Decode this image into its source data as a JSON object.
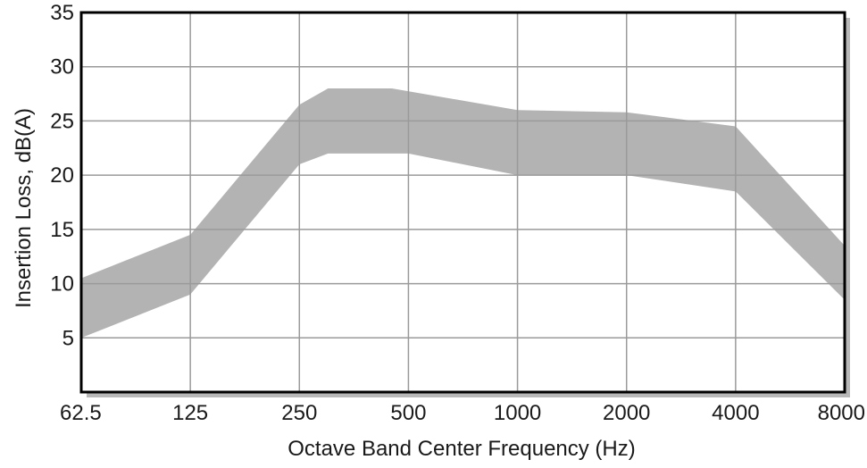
{
  "chart_data": {
    "type": "area",
    "title": "",
    "xlabel": "Octave Band Center Frequency (Hz)",
    "ylabel": "Insertion Loss, dB(A)",
    "x_scale": "log2",
    "categories": [
      "62.5",
      "125",
      "250",
      "500",
      "1000",
      "2000",
      "4000",
      "8000"
    ],
    "x_tick_labels": [
      "62.5",
      "125",
      "250",
      "500",
      "1000",
      "2000",
      "4000",
      "8000"
    ],
    "y_ticks": [
      5,
      10,
      15,
      20,
      25,
      30,
      35
    ],
    "ylim": [
      0,
      35
    ],
    "grid": true,
    "band": {
      "upper": [
        {
          "x": 62.5,
          "y": 10.5
        },
        {
          "x": 125,
          "y": 14.5
        },
        {
          "x": 250,
          "y": 26.5
        },
        {
          "x": 300,
          "y": 28
        },
        {
          "x": 450,
          "y": 28
        },
        {
          "x": 1000,
          "y": 26
        },
        {
          "x": 2000,
          "y": 25.8
        },
        {
          "x": 4000,
          "y": 24.5
        },
        {
          "x": 8000,
          "y": 13.5
        }
      ],
      "lower": [
        {
          "x": 62.5,
          "y": 5
        },
        {
          "x": 125,
          "y": 9
        },
        {
          "x": 250,
          "y": 21
        },
        {
          "x": 300,
          "y": 22
        },
        {
          "x": 500,
          "y": 22
        },
        {
          "x": 1000,
          "y": 20
        },
        {
          "x": 2000,
          "y": 20
        },
        {
          "x": 4000,
          "y": 18.5
        },
        {
          "x": 8000,
          "y": 8.5
        }
      ],
      "color": "#b3b3b3"
    },
    "colors": {
      "grid": "#9a9a9a",
      "frame": "#000000",
      "shadow": "#b8b8b8"
    }
  }
}
